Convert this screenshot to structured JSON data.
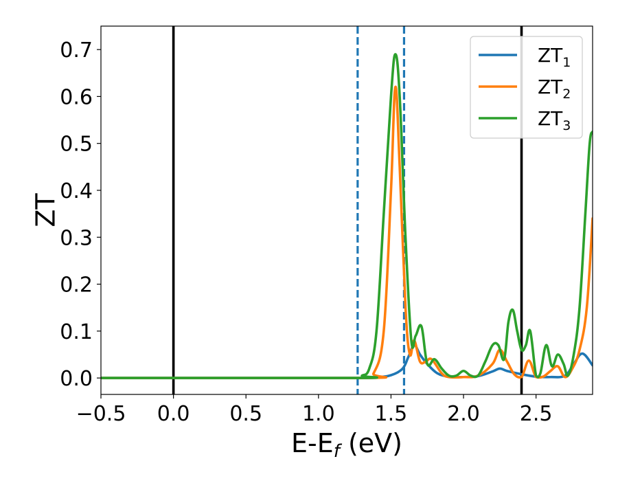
{
  "chart_data": {
    "type": "line",
    "xlabel": {
      "main": "E-E",
      "sub": "f",
      "rest": " (eV)"
    },
    "ylabel": "ZT",
    "xlim": [
      -0.5,
      2.89
    ],
    "ylim": [
      -0.035,
      0.75
    ],
    "xticks": [
      -0.5,
      0.0,
      0.5,
      1.0,
      1.5,
      2.0,
      2.5
    ],
    "xtick_labels": [
      "−0.5",
      "0.0",
      "0.5",
      "1.0",
      "1.5",
      "2.0",
      "2.5"
    ],
    "yticks": [
      0.0,
      0.1,
      0.2,
      0.3,
      0.4,
      0.5,
      0.6,
      0.7
    ],
    "ytick_labels": [
      "0.0",
      "0.1",
      "0.2",
      "0.3",
      "0.4",
      "0.5",
      "0.6",
      "0.7"
    ],
    "grid": false,
    "legend_position": "top-right",
    "vlines": [
      {
        "x": 0.0,
        "style": "solid",
        "color": "#000000"
      },
      {
        "x": 2.4,
        "style": "solid",
        "color": "#000000"
      },
      {
        "x": 1.27,
        "style": "dashed",
        "color": "#1f77b4"
      },
      {
        "x": 1.59,
        "style": "dashed",
        "color": "#1f77b4"
      }
    ],
    "series": [
      {
        "name": "ZT",
        "sub": "1",
        "color": "#1f77b4",
        "x": [
          -0.5,
          1.2,
          1.4,
          1.5,
          1.58,
          1.62,
          1.66,
          1.7,
          1.75,
          1.82,
          1.9,
          2.0,
          2.1,
          2.2,
          2.25,
          2.3,
          2.4,
          2.5,
          2.6,
          2.7,
          2.76,
          2.82,
          2.89
        ],
        "y": [
          0,
          0,
          0.002,
          0.006,
          0.02,
          0.045,
          0.07,
          0.05,
          0.03,
          0.01,
          0.003,
          0.002,
          0.004,
          0.014,
          0.02,
          0.015,
          0.008,
          0.003,
          0.002,
          0.005,
          0.03,
          0.052,
          0.027
        ]
      },
      {
        "name": "ZT",
        "sub": "2",
        "color": "#ff7f0e",
        "x": [
          -0.5,
          1.3,
          1.38,
          1.45,
          1.5,
          1.53,
          1.56,
          1.6,
          1.63,
          1.66,
          1.7,
          1.74,
          1.78,
          1.85,
          1.9,
          2.0,
          2.1,
          2.2,
          2.25,
          2.3,
          2.35,
          2.4,
          2.45,
          2.5,
          2.55,
          2.6,
          2.65,
          2.7,
          2.75,
          2.8,
          2.85,
          2.89
        ],
        "y": [
          0,
          0,
          0.01,
          0.1,
          0.4,
          0.62,
          0.45,
          0.15,
          0.05,
          0.08,
          0.035,
          0.035,
          0.04,
          0.01,
          0.002,
          0.002,
          0.005,
          0.03,
          0.06,
          0.035,
          0.008,
          0.002,
          0.037,
          0.002,
          0.003,
          0.015,
          0.025,
          0.002,
          0.02,
          0.06,
          0.15,
          0.34
        ]
      },
      {
        "name": "ZT",
        "sub": "3",
        "color": "#2ca02c",
        "x": [
          -0.5,
          1.25,
          1.3,
          1.35,
          1.4,
          1.45,
          1.5,
          1.53,
          1.56,
          1.6,
          1.64,
          1.67,
          1.71,
          1.75,
          1.8,
          1.85,
          1.9,
          1.95,
          2.0,
          2.05,
          2.1,
          2.15,
          2.2,
          2.24,
          2.28,
          2.31,
          2.34,
          2.37,
          2.4,
          2.43,
          2.46,
          2.5,
          2.53,
          2.57,
          2.61,
          2.65,
          2.69,
          2.72,
          2.76,
          2.8,
          2.84,
          2.87,
          2.89
        ],
        "y": [
          0,
          0,
          0.005,
          0.02,
          0.1,
          0.35,
          0.6,
          0.69,
          0.6,
          0.3,
          0.08,
          0.09,
          0.11,
          0.03,
          0.04,
          0.02,
          0.005,
          0.005,
          0.015,
          0.005,
          0.005,
          0.035,
          0.07,
          0.07,
          0.04,
          0.12,
          0.145,
          0.1,
          0.06,
          0.07,
          0.1,
          0.005,
          0.01,
          0.07,
          0.025,
          0.05,
          0.03,
          0.005,
          0.05,
          0.15,
          0.35,
          0.5,
          0.525
        ]
      }
    ]
  }
}
